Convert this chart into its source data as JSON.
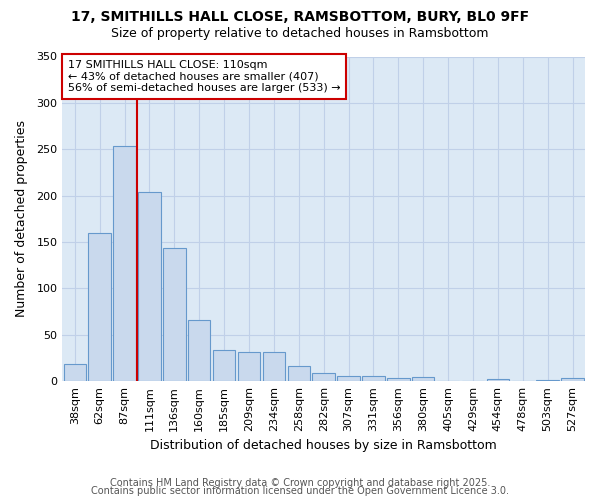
{
  "title_line1": "17, SMITHILLS HALL CLOSE, RAMSBOTTOM, BURY, BL0 9FF",
  "title_line2": "Size of property relative to detached houses in Ramsbottom",
  "xlabel": "Distribution of detached houses by size in Ramsbottom",
  "ylabel": "Number of detached properties",
  "categories": [
    "38sqm",
    "62sqm",
    "87sqm",
    "111sqm",
    "136sqm",
    "160sqm",
    "185sqm",
    "209sqm",
    "234sqm",
    "258sqm",
    "282sqm",
    "307sqm",
    "331sqm",
    "356sqm",
    "380sqm",
    "405sqm",
    "429sqm",
    "454sqm",
    "478sqm",
    "503sqm",
    "527sqm"
  ],
  "values": [
    18,
    160,
    253,
    204,
    144,
    66,
    34,
    31,
    31,
    16,
    9,
    6,
    6,
    3,
    4,
    0,
    0,
    2,
    0,
    1,
    3
  ],
  "bar_color": "#c9d9ed",
  "bar_edge_color": "#6699cc",
  "vline_color": "#cc0000",
  "vline_x_index": 3,
  "annotation_text_line1": "17 SMITHILLS HALL CLOSE: 110sqm",
  "annotation_text_line2": "← 43% of detached houses are smaller (407)",
  "annotation_text_line3": "56% of semi-detached houses are larger (533) →",
  "box_edge_color": "#cc0000",
  "ylim": [
    0,
    350
  ],
  "yticks": [
    0,
    50,
    100,
    150,
    200,
    250,
    300,
    350
  ],
  "footer_line1": "Contains HM Land Registry data © Crown copyright and database right 2025.",
  "footer_line2": "Contains public sector information licensed under the Open Government Licence 3.0.",
  "plot_bg_color": "#dce9f5",
  "fig_bg_color": "#ffffff",
  "grid_color": "#c0d0e8",
  "title_fontsize": 10,
  "subtitle_fontsize": 9,
  "axis_label_fontsize": 9,
  "tick_fontsize": 8,
  "annotation_fontsize": 8,
  "footer_fontsize": 7
}
